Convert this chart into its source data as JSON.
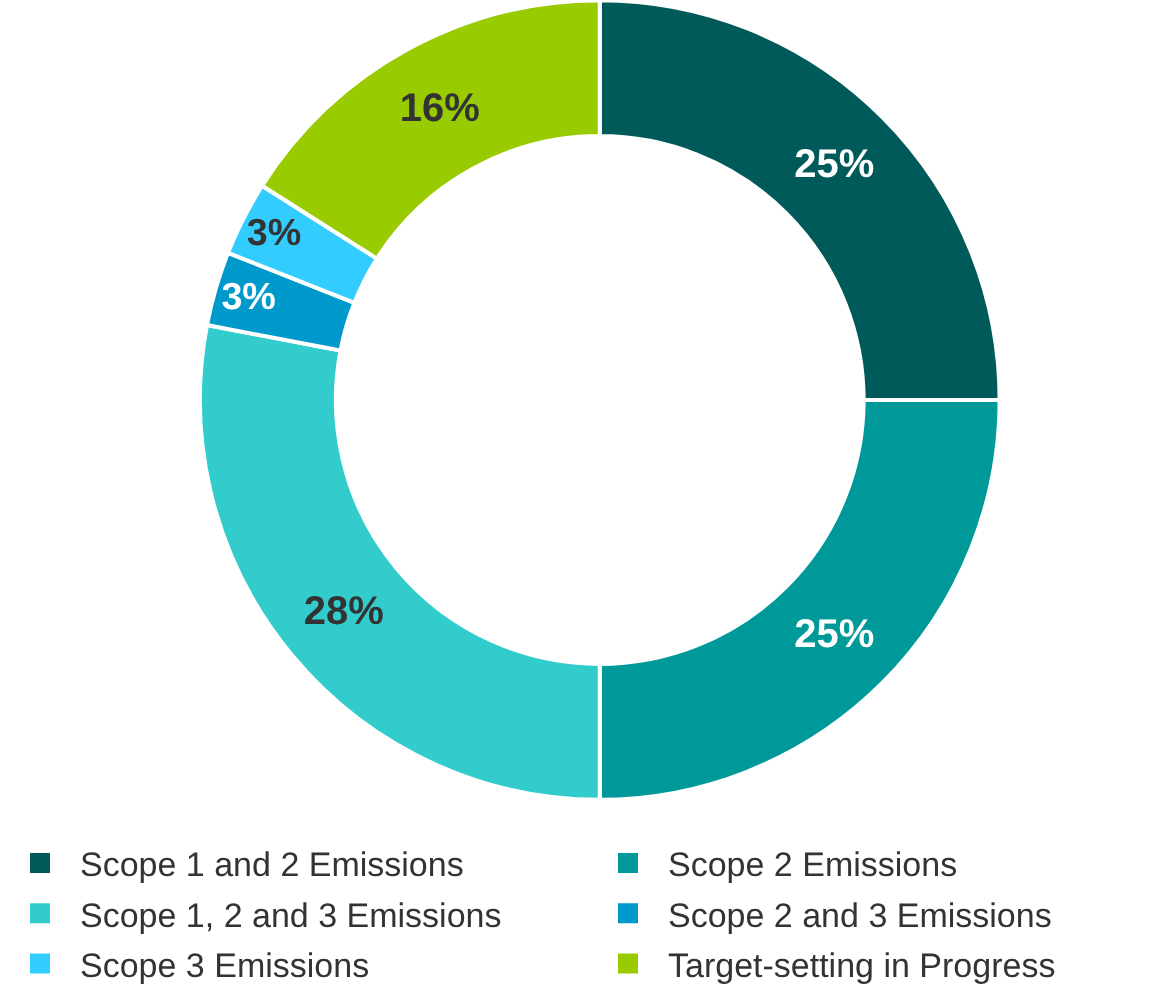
{
  "chart_data": {
    "type": "donut",
    "categories": [
      "Scope 1 and 2 Emissions",
      "Scope 2 Emissions",
      "Scope 1, 2 and 3 Emissions",
      "Scope 2 and 3 Emissions",
      "Scope 3 Emissions",
      "Target-setting in Progress"
    ],
    "values": [
      25,
      25,
      28,
      3,
      3,
      16
    ],
    "value_labels": [
      "25%",
      "25%",
      "28%",
      "3%",
      "3%",
      "16%"
    ],
    "colors": [
      "#005a5a",
      "#009999",
      "#33cccc",
      "#0099cc",
      "#33ccff",
      "#99cc00"
    ],
    "legend": "bottom"
  }
}
